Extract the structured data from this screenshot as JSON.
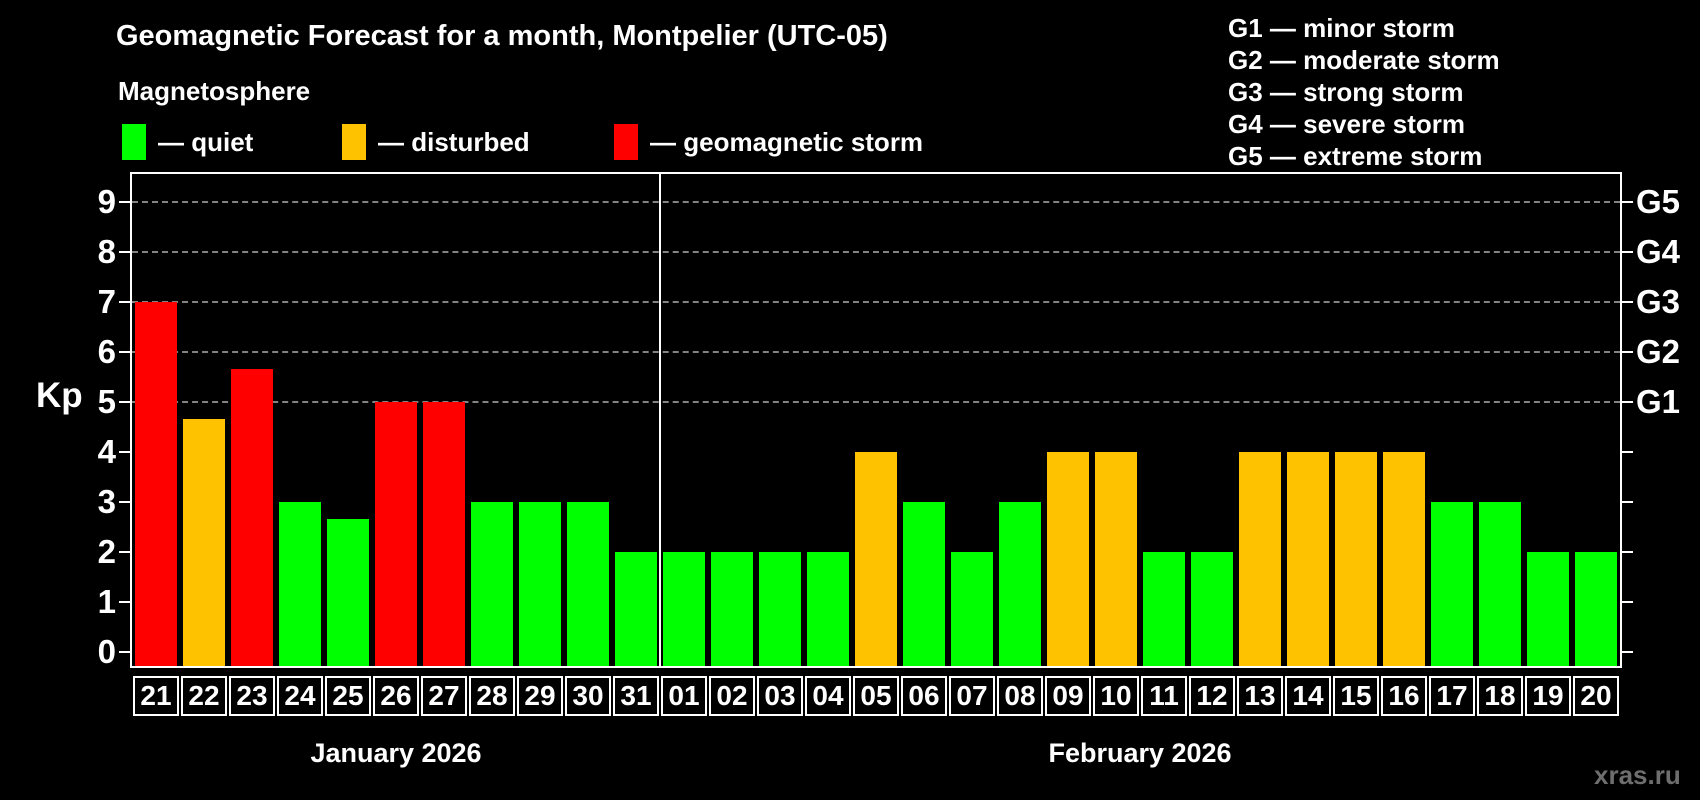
{
  "title": "Geomagnetic Forecast for a month, Montpelier (UTC-05)",
  "subtitle": "Magnetosphere",
  "legend": {
    "quiet": {
      "label": "— quiet",
      "color": "#00ff00"
    },
    "disturbed": {
      "label": "— disturbed",
      "color": "#ffc200"
    },
    "storm": {
      "label": "— geomagnetic storm",
      "color": "#ff0000"
    }
  },
  "g_scale_legend": [
    "G1 — minor storm",
    "G2 — moderate storm",
    "G3 — strong storm",
    "G4 — severe storm",
    "G5 — extreme storm"
  ],
  "watermark": "xras.ru",
  "chart_data": {
    "type": "bar",
    "ylabel": "Kp",
    "ylim": [
      0,
      9
    ],
    "yticks": [
      0,
      1,
      2,
      3,
      4,
      5,
      6,
      7,
      8,
      9
    ],
    "gridlines_at": [
      5,
      6,
      7,
      8,
      9
    ],
    "grid": "dashed horizontal at Kp 5-9 only",
    "right_axis": [
      {
        "kp": 5,
        "label": "G1"
      },
      {
        "kp": 6,
        "label": "G2"
      },
      {
        "kp": 7,
        "label": "G3"
      },
      {
        "kp": 8,
        "label": "G4"
      },
      {
        "kp": 9,
        "label": "G5"
      }
    ],
    "status_colors": {
      "quiet": "#00ff00",
      "disturbed": "#ffc200",
      "storm": "#ff0000"
    },
    "months": [
      {
        "label": "January 2026",
        "days": 11
      },
      {
        "label": "February 2026",
        "days": 20
      }
    ],
    "categories": [
      "21",
      "22",
      "23",
      "24",
      "25",
      "26",
      "27",
      "28",
      "29",
      "30",
      "31",
      "01",
      "02",
      "03",
      "04",
      "05",
      "06",
      "07",
      "08",
      "09",
      "10",
      "11",
      "12",
      "13",
      "14",
      "15",
      "16",
      "17",
      "18",
      "19",
      "20"
    ],
    "values": [
      7,
      4.67,
      5.67,
      3,
      2.67,
      5,
      5,
      3,
      3,
      3,
      2,
      2,
      2,
      2,
      2,
      4,
      3,
      2,
      3,
      4,
      4,
      2,
      2,
      4,
      4,
      4,
      4,
      3,
      3,
      2,
      2
    ],
    "statuses": [
      "storm",
      "disturbed",
      "storm",
      "quiet",
      "quiet",
      "storm",
      "storm",
      "quiet",
      "quiet",
      "quiet",
      "quiet",
      "quiet",
      "quiet",
      "quiet",
      "quiet",
      "disturbed",
      "quiet",
      "quiet",
      "quiet",
      "disturbed",
      "disturbed",
      "quiet",
      "quiet",
      "disturbed",
      "disturbed",
      "disturbed",
      "disturbed",
      "quiet",
      "quiet",
      "quiet",
      "quiet"
    ]
  }
}
